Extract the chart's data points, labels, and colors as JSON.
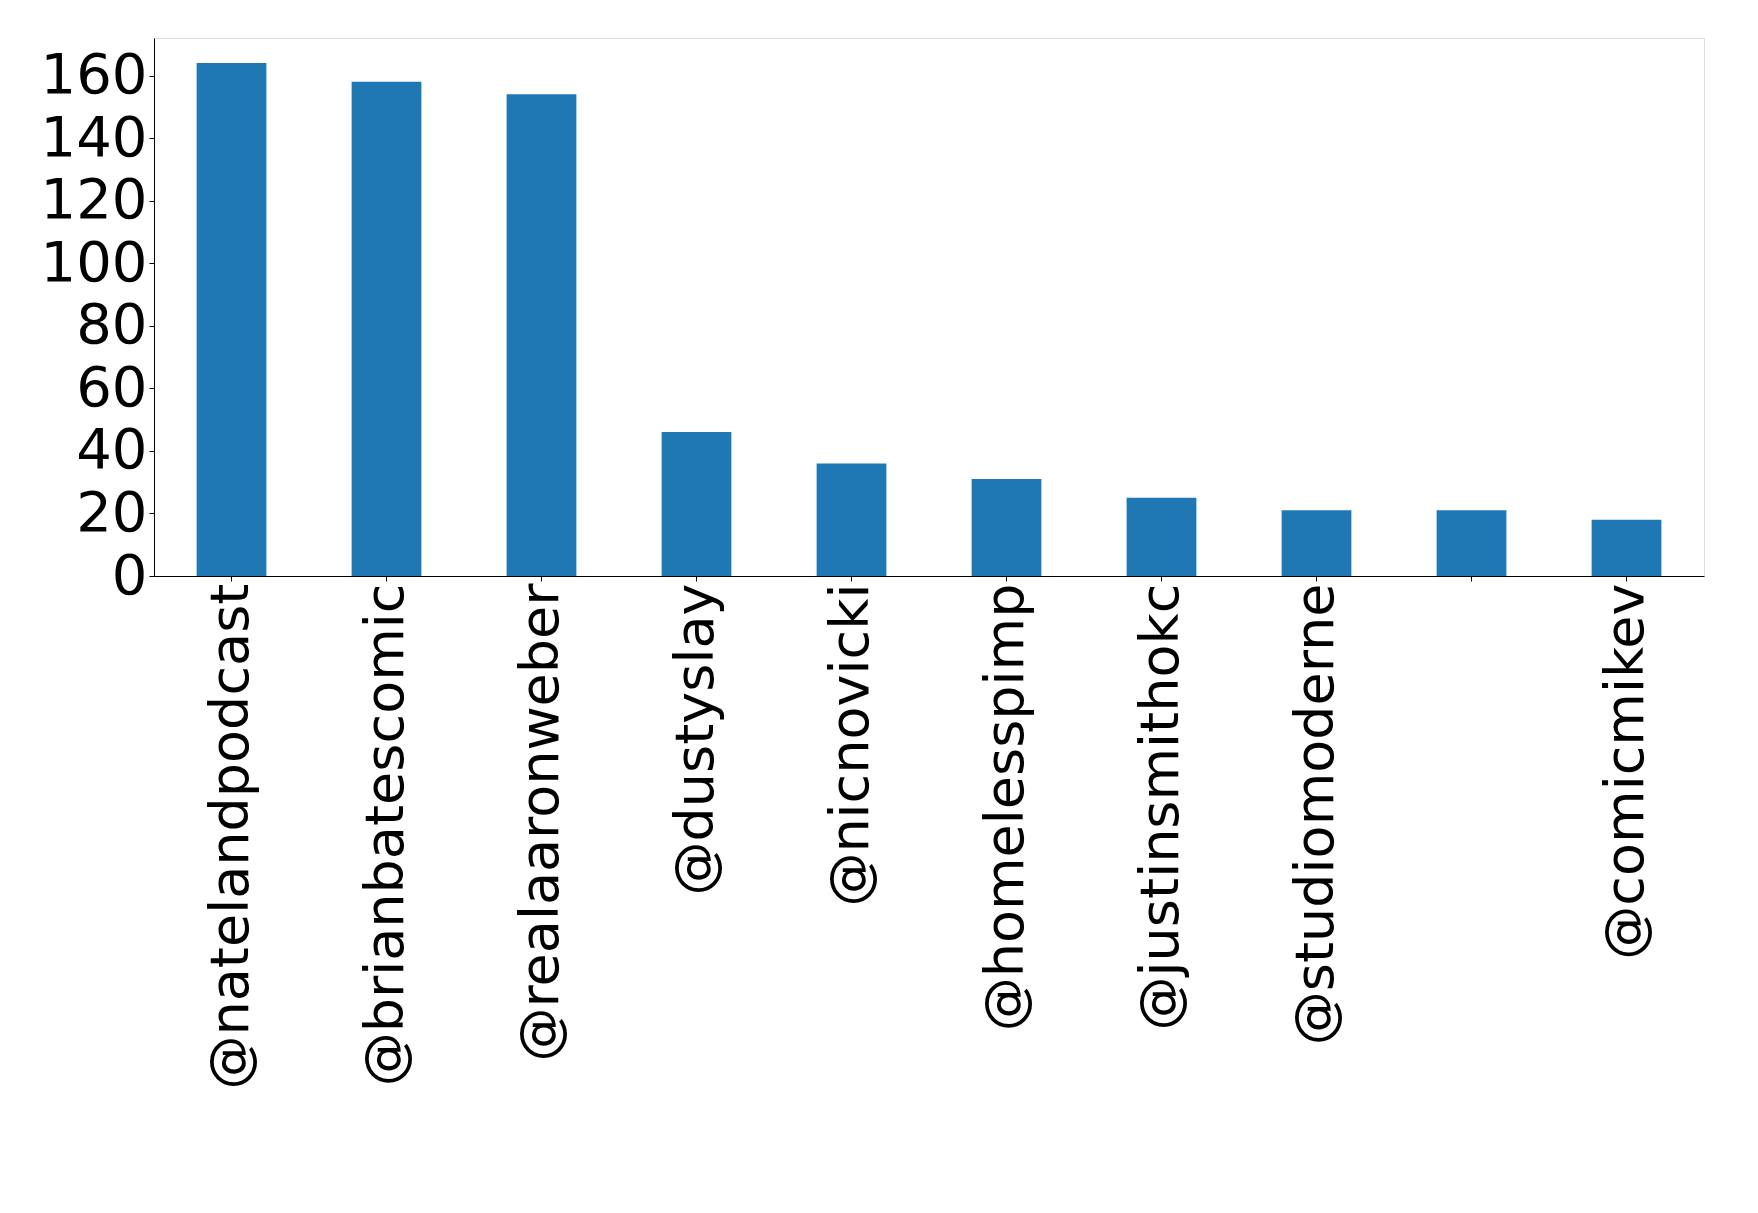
{
  "chart_data": {
    "type": "bar",
    "categories": [
      "@natelandpodcast",
      "@brianbatescomic",
      "@realaaronweber",
      "@dustyslay",
      "@nicnovicki",
      "@homelesspimp",
      "@justinsmithokc",
      "@studiomoderne",
      null,
      "@comicmikev"
    ],
    "values": [
      164,
      158,
      154,
      46,
      36,
      31,
      25,
      21,
      21,
      18
    ],
    "color": "#1f77b4",
    "ylim": [
      0,
      172
    ],
    "yticks": [
      0,
      20,
      40,
      60,
      80,
      100,
      120,
      140,
      160
    ],
    "grid": false
  }
}
